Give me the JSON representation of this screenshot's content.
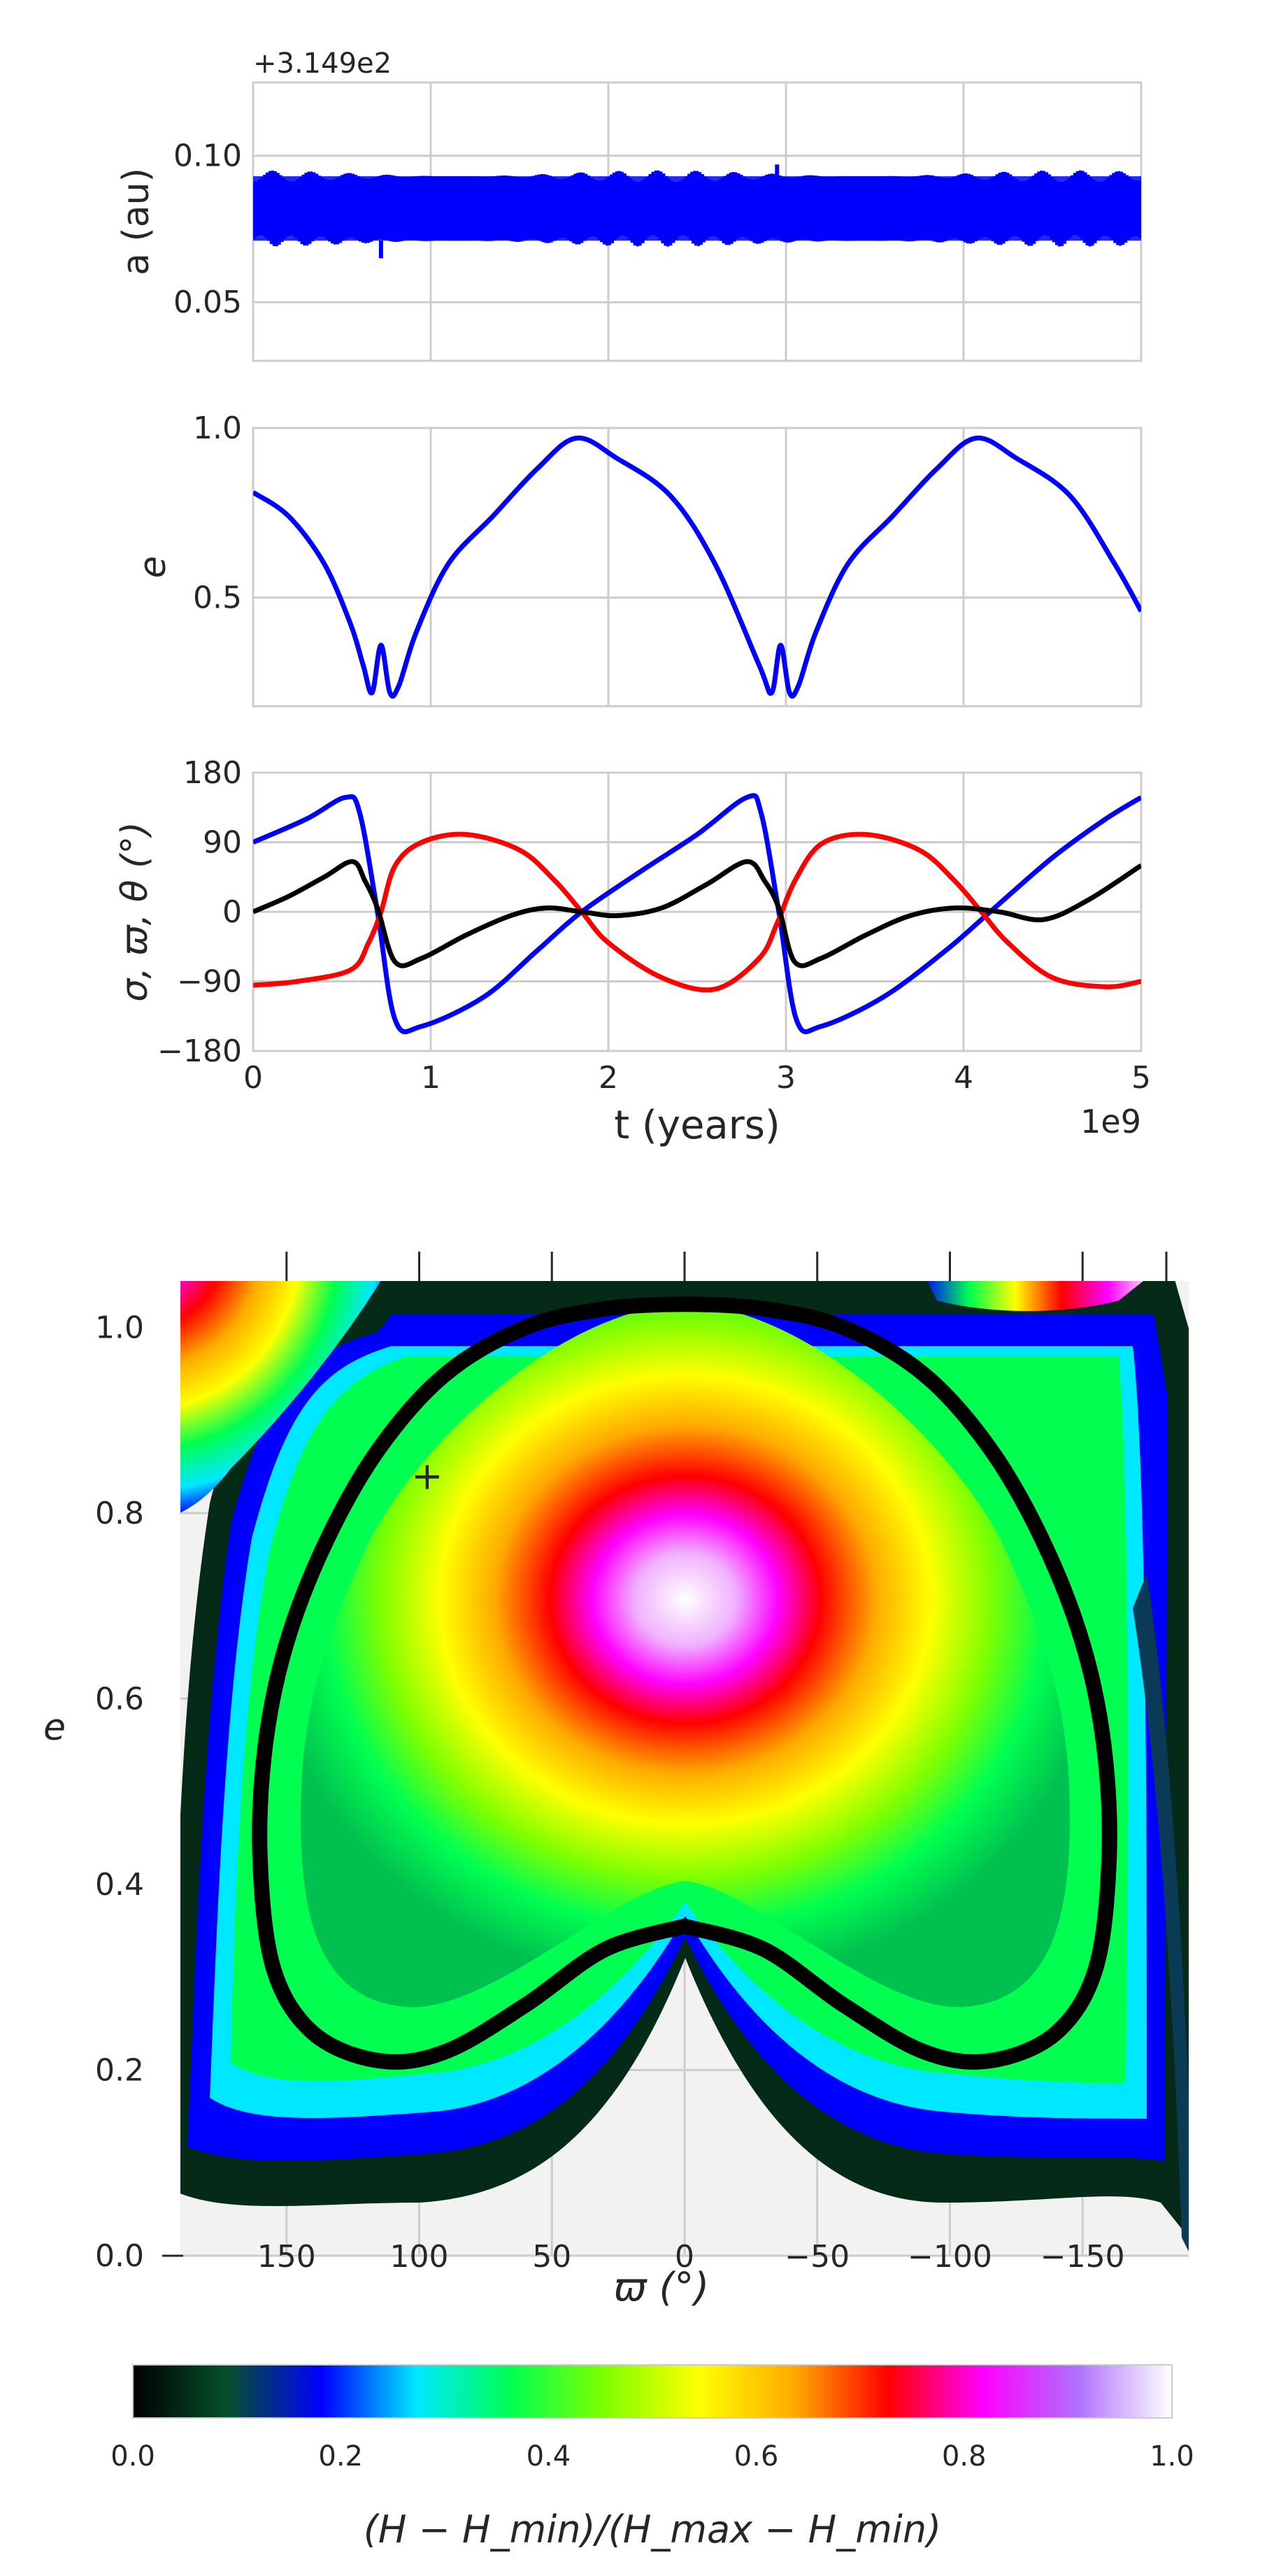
{
  "chart_data": [
    {
      "type": "line",
      "panel": "semimajor-axis",
      "offset_label": "+3.149e2",
      "ylabel": "a (au)",
      "ylim": [
        0.03,
        0.125
      ],
      "yticks": [
        0.05,
        0.1
      ],
      "ytick_labels": [
        "0.05",
        "0.10"
      ],
      "xlim": [
        0,
        5
      ],
      "series": [
        {
          "name": "a",
          "color": "#0000ff",
          "band_low": 0.071,
          "band_high": 0.093
        }
      ]
    },
    {
      "type": "line",
      "panel": "eccentricity",
      "ylabel": "e",
      "ylim": [
        0.18,
        1.0
      ],
      "yticks": [
        0.5,
        1.0
      ],
      "ytick_labels": [
        "0.5",
        "1.0"
      ],
      "xlim": [
        0,
        5
      ],
      "series": [
        {
          "name": "e",
          "color": "#0000ff",
          "x": [
            0,
            0.2,
            0.4,
            0.55,
            0.62,
            0.67,
            0.72,
            0.77,
            0.82,
            0.92,
            1.1,
            1.35,
            1.6,
            1.82,
            2.05,
            2.35,
            2.6,
            2.85,
            2.92,
            2.97,
            3.02,
            3.07,
            3.17,
            3.35,
            3.6,
            3.85,
            4.07,
            4.3,
            4.6,
            4.85,
            5.0
          ],
          "y": [
            0.81,
            0.74,
            0.6,
            0.42,
            0.3,
            0.22,
            0.36,
            0.22,
            0.24,
            0.4,
            0.6,
            0.74,
            0.88,
            0.97,
            0.91,
            0.8,
            0.6,
            0.3,
            0.22,
            0.36,
            0.22,
            0.24,
            0.4,
            0.6,
            0.74,
            0.88,
            0.97,
            0.91,
            0.8,
            0.6,
            0.46
          ]
        }
      ]
    },
    {
      "type": "line",
      "panel": "angles",
      "ylabel": "σ, ϖ, θ (°)",
      "xlabel": "t (years)",
      "x_scale_label": "1e9",
      "ylim": [
        -180,
        180
      ],
      "yticks": [
        -180,
        -90,
        0,
        90,
        180
      ],
      "ytick_labels": [
        "−180",
        "−90",
        "0",
        "90",
        "180"
      ],
      "xlim": [
        0,
        5
      ],
      "xticks": [
        0,
        1,
        2,
        3,
        4,
        5
      ],
      "xtick_labels": [
        "0",
        "1",
        "2",
        "3",
        "4",
        "5"
      ],
      "series": [
        {
          "name": "varpi",
          "color": "#0000ff",
          "x": [
            0,
            0.3,
            0.52,
            0.6,
            0.7,
            0.8,
            0.95,
            1.3,
            1.6,
            1.85,
            2.2,
            2.5,
            2.78,
            2.86,
            2.96,
            3.06,
            3.2,
            3.55,
            3.9,
            4.15,
            4.5,
            4.8,
            5.0
          ],
          "y": [
            90,
            120,
            148,
            128,
            0,
            -140,
            -148,
            -110,
            -50,
            0,
            55,
            100,
            148,
            128,
            0,
            -140,
            -148,
            -110,
            -50,
            0,
            70,
            120,
            148
          ]
        },
        {
          "name": "theta",
          "color": "#ff0000",
          "x": [
            0,
            0.25,
            0.55,
            0.65,
            0.72,
            0.8,
            0.95,
            1.2,
            1.5,
            1.7,
            1.85,
            2.0,
            2.3,
            2.6,
            2.85,
            2.95,
            3.05,
            3.2,
            3.45,
            3.75,
            3.95,
            4.1,
            4.25,
            4.5,
            4.8,
            5.0
          ],
          "y": [
            -95,
            -90,
            -75,
            -40,
            0,
            60,
            90,
            100,
            80,
            40,
            0,
            -40,
            -85,
            -100,
            -60,
            -15,
            40,
            88,
            100,
            80,
            40,
            0,
            -40,
            -85,
            -97,
            -90
          ]
        },
        {
          "name": "sigma",
          "color": "#000000",
          "x": [
            0,
            0.2,
            0.4,
            0.56,
            0.63,
            0.7,
            0.8,
            0.95,
            1.2,
            1.45,
            1.65,
            1.85,
            2.05,
            2.3,
            2.55,
            2.78,
            2.88,
            2.96,
            3.05,
            3.2,
            3.45,
            3.7,
            3.95,
            4.2,
            4.45,
            4.7,
            5.0
          ],
          "y": [
            0,
            20,
            45,
            65,
            40,
            5,
            -65,
            -60,
            -30,
            -5,
            5,
            0,
            -5,
            5,
            35,
            65,
            40,
            5,
            -65,
            -60,
            -30,
            -5,
            5,
            0,
            -10,
            15,
            60
          ]
        }
      ]
    },
    {
      "type": "heatmap",
      "panel": "phase-portrait",
      "xlabel": "ϖ (°)",
      "ylabel": "e",
      "xlim": [
        190,
        -190
      ],
      "ylim": [
        0.0,
        1.05
      ],
      "xticks": [
        150,
        100,
        50,
        0,
        -50,
        -100,
        -150
      ],
      "xtick_labels": [
        "150",
        "100",
        "50",
        "0",
        "−50",
        "−100",
        "−150"
      ],
      "yticks": [
        0.0,
        0.2,
        0.4,
        0.6,
        0.8,
        1.0
      ],
      "ytick_labels": [
        "0.0",
        "0.2",
        "0.4",
        "0.6",
        "0.8",
        "1.0"
      ],
      "level_curve": {
        "color": "#000000",
        "x": [
          0,
          -30,
          -60,
          -90,
          -115,
          -140,
          -155,
          -160,
          -158,
          -150,
          -135,
          -115,
          -90,
          -60,
          -30,
          0,
          30,
          60,
          90,
          115,
          135,
          150,
          158,
          160,
          155,
          140,
          115,
          90,
          60,
          30,
          0
        ],
        "y": [
          0.355,
          0.33,
          0.27,
          0.22,
          0.21,
          0.24,
          0.31,
          0.43,
          0.55,
          0.66,
          0.77,
          0.87,
          0.95,
          1.0,
          1.02,
          1.025,
          1.02,
          1.0,
          0.95,
          0.87,
          0.77,
          0.66,
          0.55,
          0.43,
          0.31,
          0.24,
          0.21,
          0.22,
          0.27,
          0.33,
          0.355
        ]
      },
      "marker": {
        "x": 97,
        "y": 0.84,
        "symbol": "+",
        "color": "#ff0000"
      }
    },
    {
      "type": "colorbar",
      "label": "(H − H_min)/(H_max − H_min)",
      "range": [
        0.0,
        1.0
      ],
      "ticks": [
        0.0,
        0.2,
        0.4,
        0.6,
        0.8,
        1.0
      ],
      "tick_labels": [
        "0.0",
        "0.2",
        "0.4",
        "0.6",
        "0.8",
        "1.0"
      ],
      "colors": [
        "#000000",
        "#05502a",
        "#0000ff",
        "#00e8ff",
        "#00ff50",
        "#80ff00",
        "#ffff00",
        "#ffaa00",
        "#ff0000",
        "#ff00ff",
        "#b070ff",
        "#ffffff"
      ]
    }
  ]
}
